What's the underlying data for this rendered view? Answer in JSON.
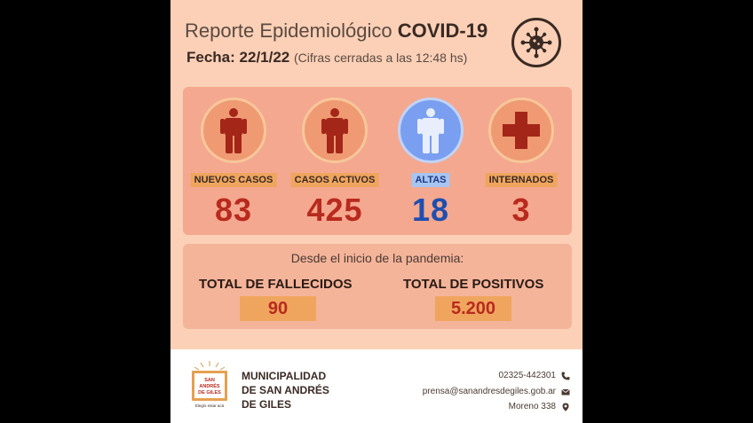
{
  "header": {
    "title_prefix": "Reporte Epidemiológico",
    "title_bold": "COVID-19",
    "date_label": "Fecha:",
    "date_value": "22/1/22",
    "date_note": "(Cifras cerradas a las 12:48 hs)",
    "virus_icon": "virus-icon"
  },
  "stats": [
    {
      "label": "NUEVOS CASOS",
      "value": "83",
      "icon": "person-icon"
    },
    {
      "label": "CASOS ACTIVOS",
      "value": "425",
      "icon": "person-icon"
    },
    {
      "label": "ALTAS",
      "value": "18",
      "icon": "person-icon"
    },
    {
      "label": "INTERNADOS",
      "value": "3",
      "icon": "medical-cross-icon"
    }
  ],
  "totals": {
    "since": "Desde el inicio de la pandemia:",
    "deaths_label": "TOTAL DE FALLECIDOS",
    "deaths_value": "90",
    "positives_label": "TOTAL DE POSITIVOS",
    "positives_value": "5.200"
  },
  "footer": {
    "logo_text_1": "SAN",
    "logo_text_2": "ANDRÉS",
    "logo_text_3": "DE GILES",
    "logo_tagline": "Elegís estar acá",
    "muni_line1": "MUNICIPALIDAD",
    "muni_line2": "DE SAN ANDRÉS",
    "muni_line3": "DE GILES",
    "phone": "02325-442301",
    "email": "prensa@sanandresdegiles.gob.ar",
    "address": "Moreno 338"
  },
  "colors": {
    "card_bg": "#fbd0b6",
    "accent_red": "#b82a1e",
    "accent_blue": "#1e4fb0",
    "label_orange": "#f0a55e"
  }
}
